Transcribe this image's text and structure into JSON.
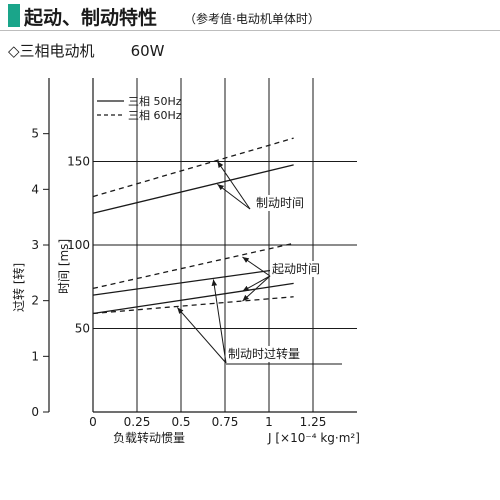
{
  "header": {
    "title": "起动、制动特性",
    "subtitle": "（参考值·电动机单体时）",
    "accent_color": "#1aa58a"
  },
  "section": {
    "marker": "◇",
    "label": "三相电动机",
    "power": "60W"
  },
  "chart_data": {
    "type": "line",
    "xlabel": "负载转动惯量",
    "xunit": "J [×10⁻⁴ kg·m²]",
    "x_ticks": [
      "0",
      "0.25",
      "0.5",
      "0.75",
      "1",
      "1.25"
    ],
    "xlim": [
      0,
      1.5
    ],
    "ylabel_time": "时间 [ms]",
    "time_ticks": [
      "50",
      "100",
      "150"
    ],
    "ylim_time": [
      0,
      200
    ],
    "ylabel_overrun": "过转 [转]",
    "overrun_ticks": [
      "0",
      "1",
      "2",
      "3",
      "4",
      "5"
    ],
    "ylim_overrun": [
      0,
      6
    ],
    "legend": {
      "placement": "top-left",
      "entries": [
        {
          "label": "三相 50Hz",
          "style": "solid"
        },
        {
          "label": "三相 60Hz",
          "style": "dashed"
        }
      ]
    },
    "grid": true,
    "series": [
      {
        "group": "制动时间",
        "axis": "time",
        "style": "dashed",
        "x": [
          0,
          1.14
        ],
        "y": [
          129,
          164
        ]
      },
      {
        "group": "制动时间",
        "axis": "time",
        "style": "solid",
        "x": [
          0,
          1.14
        ],
        "y": [
          119,
          148
        ]
      },
      {
        "group": "起动时间",
        "axis": "time",
        "style": "dashed",
        "x": [
          0,
          1.14
        ],
        "y": [
          74,
          101
        ]
      },
      {
        "group": "起动时间",
        "axis": "time",
        "style": "solid",
        "x": [
          0,
          1.14
        ],
        "y": [
          59,
          77
        ]
      },
      {
        "group": "起动时间",
        "axis": "time",
        "style": "dashed",
        "x": [
          0,
          1.14
        ],
        "y": [
          59,
          69
        ]
      },
      {
        "group": "制动时过转量",
        "axis": "overrun",
        "style": "solid",
        "x": [
          0,
          1.14
        ],
        "y": [
          2.1,
          2.6
        ]
      }
    ],
    "annotations": [
      "制动时间",
      "起动时间",
      "制动时过转量"
    ]
  }
}
